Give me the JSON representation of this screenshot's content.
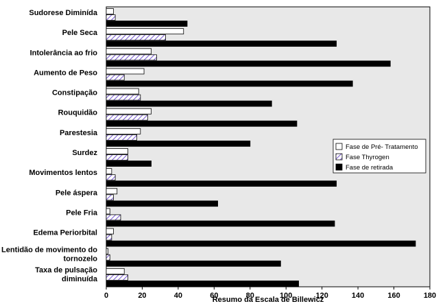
{
  "chart_data": {
    "type": "bar",
    "orientation": "horizontal",
    "title": "",
    "xlabel": "Resumo da Escala de Billewicz",
    "ylabel": "",
    "xlim": [
      0,
      180
    ],
    "xticks": [
      0,
      20,
      40,
      60,
      80,
      100,
      120,
      140,
      160,
      180
    ],
    "grid": false,
    "legend_position": "right",
    "categories": [
      [
        "Sudorese Diminída"
      ],
      [
        "Pele Seca"
      ],
      [
        "Intolerância ao frio"
      ],
      [
        "Aumento de Peso"
      ],
      [
        "Constipação"
      ],
      [
        "Rouquidão"
      ],
      [
        "Parestesia"
      ],
      [
        "Surdez"
      ],
      [
        "Movimentos lentos"
      ],
      [
        "Pele áspera"
      ],
      [
        "Pele Fria"
      ],
      [
        "Edema Periorbital"
      ],
      [
        "Lentidão de movimento do",
        "tornozelo"
      ],
      [
        "Taxa de pulsação",
        "diminuída"
      ]
    ],
    "series": [
      {
        "name": "Fase de Pré- Tratamento",
        "color": "#ffffff",
        "values": [
          4,
          43,
          25,
          21,
          18,
          25,
          19,
          12,
          3,
          6,
          2,
          4,
          1,
          10
        ]
      },
      {
        "name": "Fase Thyrogen",
        "color": "#8a72d6",
        "values": [
          5,
          33,
          28,
          10,
          19,
          23,
          17,
          12,
          5,
          4,
          8,
          3,
          2,
          12
        ]
      },
      {
        "name": "Fase de retirada",
        "color": "#000000",
        "values": [
          45,
          128,
          158,
          137,
          92,
          106,
          80,
          25,
          128,
          62,
          127,
          172,
          97,
          107
        ]
      }
    ]
  }
}
